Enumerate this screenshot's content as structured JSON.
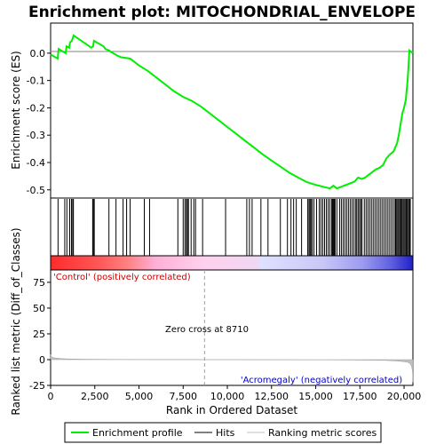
{
  "chart_data": {
    "type": "line",
    "title": "Enrichment plot: MITOCHONDRIAL_ENVELOPE",
    "colors": {
      "enrichment_line": "#00ee00",
      "hits": "#000000",
      "ranking_fill": "#c0c0c0",
      "positive_label": "#cc0000",
      "negative_label": "#0000cc",
      "zero_cross_line": "#a0a0a0"
    },
    "top_panel": {
      "ylabel": "Enrichment score (ES)",
      "ylim": [
        -0.53,
        0.11
      ],
      "yticks": [
        0.0,
        -0.1,
        -0.2,
        -0.3,
        -0.4,
        -0.5
      ],
      "ytick_labels": [
        "0.0",
        "-0.1",
        "-0.2",
        "-0.3",
        "-0.4",
        "-0.5"
      ],
      "es_curve": {
        "x": [
          0,
          400,
          450,
          850,
          900,
          1050,
          1100,
          1200,
          1250,
          1300,
          2300,
          2400,
          2450,
          3000,
          3100,
          3300,
          3400,
          3800,
          4000,
          4500,
          5000,
          5500,
          6000,
          6500,
          7000,
          7500,
          8000,
          8500,
          9000,
          9500,
          10000,
          10500,
          11000,
          11500,
          12000,
          12500,
          13000,
          13500,
          14000,
          14500,
          15000,
          15500,
          15800,
          16000,
          16200,
          16400,
          16600,
          16800,
          17000,
          17200,
          17400,
          17600,
          17800,
          18000,
          18200,
          18400,
          18600,
          18800,
          19000,
          19200,
          19400,
          19600,
          19700,
          19800,
          19900,
          20000,
          20100,
          20200,
          20250,
          20300,
          20500
        ],
        "y": [
          -0.005,
          -0.02,
          0.015,
          0.0,
          0.025,
          0.02,
          0.04,
          0.045,
          0.055,
          0.065,
          0.02,
          0.025,
          0.045,
          0.025,
          0.015,
          0.01,
          0.005,
          -0.01,
          -0.015,
          -0.02,
          -0.045,
          -0.065,
          -0.09,
          -0.115,
          -0.14,
          -0.16,
          -0.175,
          -0.195,
          -0.22,
          -0.245,
          -0.27,
          -0.295,
          -0.32,
          -0.345,
          -0.37,
          -0.393,
          -0.415,
          -0.437,
          -0.455,
          -0.472,
          -0.482,
          -0.49,
          -0.495,
          -0.485,
          -0.495,
          -0.49,
          -0.485,
          -0.48,
          -0.475,
          -0.47,
          -0.455,
          -0.46,
          -0.455,
          -0.445,
          -0.435,
          -0.425,
          -0.42,
          -0.41,
          -0.385,
          -0.37,
          -0.36,
          -0.33,
          -0.3,
          -0.26,
          -0.22,
          -0.2,
          -0.17,
          -0.1,
          -0.05,
          0.01,
          0.0
        ]
      }
    },
    "hits_panel": {
      "positions": [
        420,
        800,
        920,
        1080,
        1180,
        1250,
        1290,
        2380,
        2420,
        2470,
        3300,
        3700,
        4100,
        4300,
        4500,
        5300,
        5600,
        7200,
        7500,
        7600,
        7680,
        7740,
        7800,
        7950,
        8100,
        8200,
        8600,
        9900,
        11100,
        11250,
        11400,
        11900,
        12300,
        13000,
        13400,
        13600,
        13750,
        13900,
        14200,
        14550,
        14620,
        14680,
        14730,
        14800,
        14900,
        15050,
        15200,
        15300,
        15400,
        15500,
        15600,
        15700,
        15800,
        15900,
        15950,
        16000,
        16050,
        16100,
        16200,
        16350,
        16450,
        16550,
        16650,
        16750,
        16850,
        16950,
        17050,
        17150,
        17250,
        17320,
        17400,
        17480,
        17550,
        17620,
        17750,
        17850,
        17950,
        18050,
        18150,
        18250,
        18350,
        18450,
        18550,
        18650,
        18750,
        18850,
        18950,
        19050,
        19150,
        19250,
        19350,
        19450,
        19520,
        19580,
        19640,
        19700,
        19760,
        19820,
        19880,
        19940,
        20000,
        20060,
        20120,
        20180,
        20240,
        20300,
        20350
      ]
    },
    "ranking_panel": {
      "ylabel": "Ranked list metric (Diff_of_Classes)",
      "ylim": [
        -25,
        87
      ],
      "yticks": [
        75,
        50,
        25,
        0,
        -25
      ],
      "ytick_labels": [
        "75",
        "50",
        "25",
        "0",
        "-25"
      ],
      "metric": {
        "x": [
          0,
          30,
          80,
          150,
          300,
          600,
          1000,
          2000,
          2800,
          4000,
          6000,
          8000,
          8710,
          10000,
          12000,
          14000,
          16000,
          18000,
          19000,
          19500,
          19900,
          20200,
          20350,
          20430,
          20480,
          20500
        ],
        "y": [
          5,
          3.5,
          2.5,
          2,
          1.5,
          1,
          0.7,
          0.4,
          0.3,
          0.2,
          0.1,
          0.03,
          0,
          -0.05,
          -0.1,
          -0.2,
          -0.3,
          -0.5,
          -0.8,
          -1.2,
          -1.8,
          -2.5,
          -4,
          -7,
          -12,
          -22
        ]
      },
      "positive_label": "'Control' (positively correlated)",
      "negative_label": "'Acromegaly' (negatively correlated)",
      "zero_cross_label": "Zero cross at 8710",
      "zero_cross_at": 8710
    },
    "xlabel": "Rank in Ordered Dataset",
    "xlim": [
      0,
      20500
    ],
    "xticks": [
      0,
      2500,
      5000,
      7500,
      10000,
      12500,
      15000,
      17500,
      20000
    ],
    "xtick_labels": [
      "0",
      "2,500",
      "5,000",
      "7,500",
      "10,000",
      "12,500",
      "15,000",
      "17,500",
      "20,000"
    ],
    "legend": [
      "Enrichment profile",
      "Hits",
      "Ranking metric scores"
    ]
  }
}
